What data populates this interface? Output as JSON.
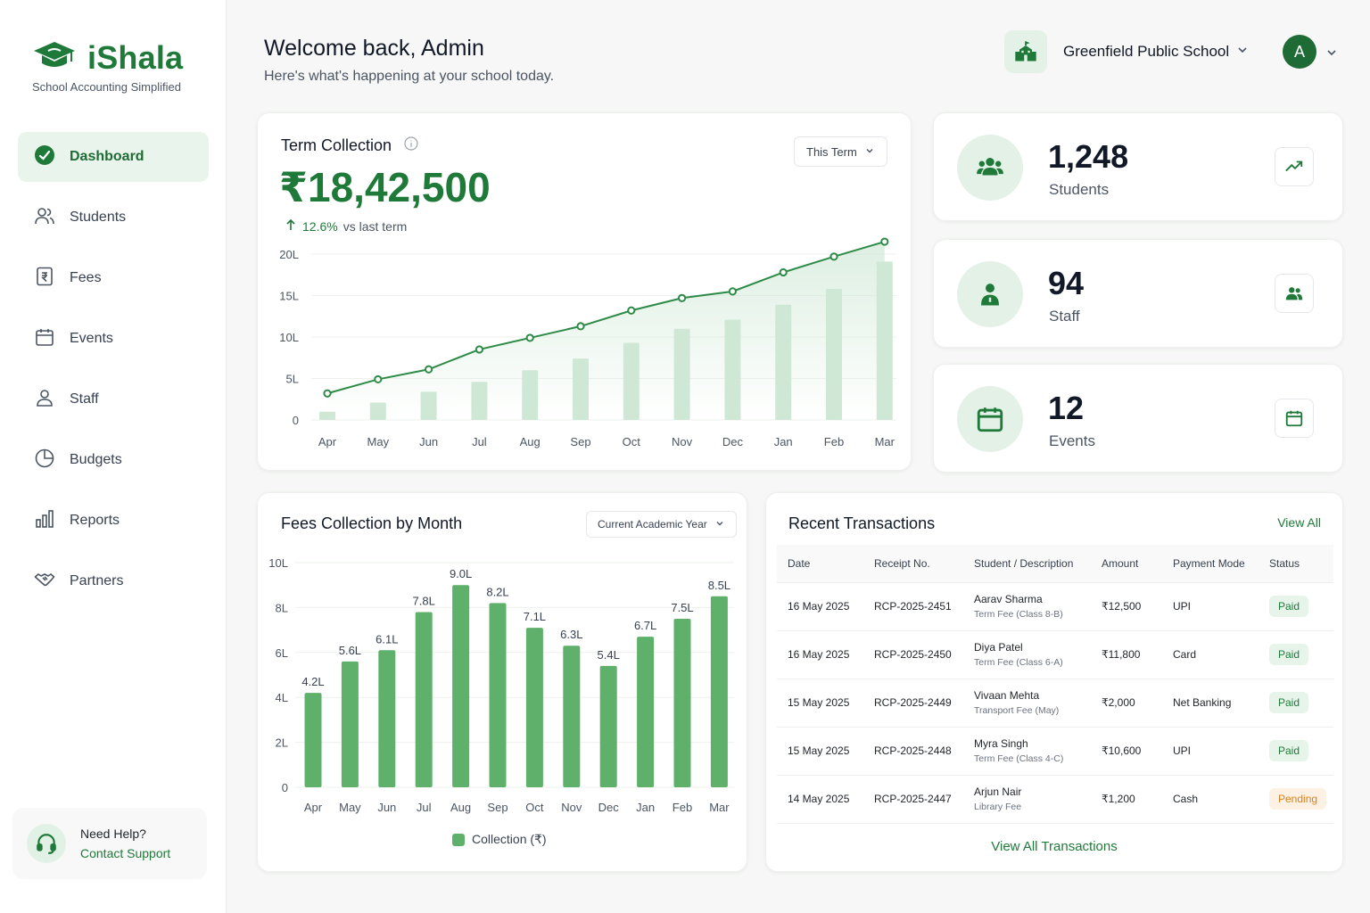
{
  "app": {
    "name": "iShala",
    "tagline": "School Accounting Simplified",
    "brand_color": "#1f7a3a"
  },
  "sidebar": {
    "items": [
      {
        "label": "Dashboard",
        "icon": "dashboard-gauge-icon",
        "active": true
      },
      {
        "label": "Students",
        "icon": "students-icon"
      },
      {
        "label": "Fees",
        "icon": "rupee-receipt-icon"
      },
      {
        "label": "Events",
        "icon": "calendar-icon"
      },
      {
        "label": "Staff",
        "icon": "person-icon"
      },
      {
        "label": "Budgets",
        "icon": "pie-chart-icon"
      },
      {
        "label": "Reports",
        "icon": "bar-chart-icon"
      },
      {
        "label": "Partners",
        "icon": "handshake-icon"
      }
    ],
    "help": {
      "title": "Need Help?",
      "link": "Contact Support"
    }
  },
  "header": {
    "title": "Welcome back, Admin",
    "subtitle": "Here's what's happening at your school today.",
    "school": "Greenfield Public School",
    "avatar_initial": "A"
  },
  "term_collection": {
    "title": "Term Collection",
    "amount": "₹18,42,500",
    "change_pct": "12.6%",
    "change_text": "vs last term",
    "period": "This Term"
  },
  "stats": [
    {
      "value": "1,248",
      "label": "Students",
      "icon": "users-group-icon",
      "action_icon": "trending-up-icon"
    },
    {
      "value": "94",
      "label": "Staff",
      "icon": "staff-person-icon",
      "action_icon": "users-icon"
    },
    {
      "value": "12",
      "label": "Events",
      "icon": "calendar-icon",
      "action_icon": "calendar-icon"
    }
  ],
  "fees_by_month": {
    "title": "Fees Collection by Month",
    "period": "Current Academic Year",
    "legend": "Collection (₹)"
  },
  "chart_data": [
    {
      "type": "line",
      "categories": [
        "Apr",
        "May",
        "Jun",
        "Jul",
        "Aug",
        "Sep",
        "Oct",
        "Nov",
        "Dec",
        "Jan",
        "Feb",
        "Mar"
      ],
      "y_ticks": [
        "0",
        "5L",
        "10L",
        "15L",
        "20L"
      ],
      "ylim": [
        0,
        20
      ],
      "series": [
        {
          "type": "line",
          "values": [
            3.2,
            4.9,
            6.1,
            8.5,
            9.9,
            11.3,
            13.2,
            14.7,
            15.5,
            17.8,
            19.7,
            21.5
          ]
        },
        {
          "type": "bar",
          "values": [
            1.0,
            2.1,
            3.4,
            4.6,
            6.0,
            7.4,
            9.3,
            11.0,
            12.1,
            13.9,
            15.8,
            19.1
          ]
        }
      ]
    },
    {
      "type": "bar",
      "categories": [
        "Apr",
        "May",
        "Jun",
        "Jul",
        "Aug",
        "Sep",
        "Oct",
        "Nov",
        "Dec",
        "Jan",
        "Feb",
        "Mar"
      ],
      "values": [
        4.2,
        5.6,
        6.1,
        7.8,
        9.0,
        8.2,
        7.1,
        6.3,
        5.4,
        6.7,
        7.5,
        8.5
      ],
      "labels": [
        "4.2L",
        "5.6L",
        "6.1L",
        "7.8L",
        "9.0L",
        "8.2L",
        "7.1L",
        "6.3L",
        "5.4L",
        "6.7L",
        "7.5L",
        "8.5L"
      ],
      "y_ticks": [
        "0",
        "2L",
        "4L",
        "6L",
        "8L",
        "10L"
      ],
      "ylim": [
        0,
        10
      ],
      "legend": "Collection (₹)"
    }
  ],
  "transactions": {
    "title": "Recent Transactions",
    "view_all": "View All",
    "footer": "View All Transactions",
    "columns": [
      "Date",
      "Receipt No.",
      "Student / Description",
      "Amount",
      "Payment Mode",
      "Status"
    ],
    "rows": [
      {
        "date": "16 May 2025",
        "receipt": "RCP-2025-2451",
        "student": "Aarav Sharma",
        "desc": "Term Fee (Class 8-B)",
        "amount": "₹12,500",
        "mode": "UPI",
        "status": "Paid"
      },
      {
        "date": "16 May 2025",
        "receipt": "RCP-2025-2450",
        "student": "Diya Patel",
        "desc": "Term Fee (Class 6-A)",
        "amount": "₹11,800",
        "mode": "Card",
        "status": "Paid"
      },
      {
        "date": "15 May 2025",
        "receipt": "RCP-2025-2449",
        "student": "Vivaan Mehta",
        "desc": "Transport Fee (May)",
        "amount": "₹2,000",
        "mode": "Net Banking",
        "status": "Paid"
      },
      {
        "date": "15 May 2025",
        "receipt": "RCP-2025-2448",
        "student": "Myra Singh",
        "desc": "Term Fee (Class 4-C)",
        "amount": "₹10,600",
        "mode": "UPI",
        "status": "Paid"
      },
      {
        "date": "14 May 2025",
        "receipt": "RCP-2025-2447",
        "student": "Arjun Nair",
        "desc": "Library Fee",
        "amount": "₹1,200",
        "mode": "Cash",
        "status": "Pending"
      }
    ]
  }
}
